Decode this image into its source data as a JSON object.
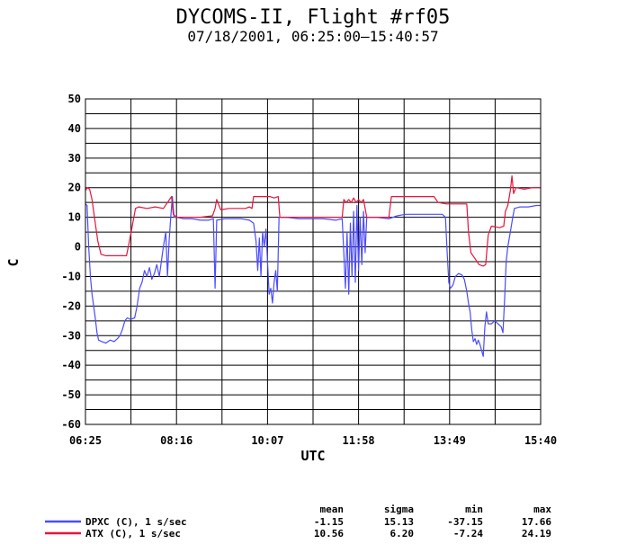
{
  "chart_data": {
    "type": "line",
    "title": "DYCOMS-II, Flight #rf05",
    "subtitle": "07/18/2001, 06:25:00–15:40:57",
    "xlabel": "UTC",
    "ylabel": "C",
    "xlim": [
      "06:25",
      "15:40"
    ],
    "ylim": [
      -60,
      50
    ],
    "x_ticks": [
      "06:25",
      "08:16",
      "10:07",
      "11:58",
      "13:49",
      "15:40"
    ],
    "y_ticks": [
      50,
      40,
      30,
      20,
      10,
      0,
      -10,
      -20,
      -30,
      -40,
      -50,
      -60
    ],
    "grid": true,
    "stats_headers": [
      "mean",
      "sigma",
      "min",
      "max"
    ],
    "series": [
      {
        "name": "DPXC (C), 1 s/sec",
        "color": "#4b4bff",
        "stats": [
          "-1.15",
          "15.13",
          "-37.15",
          "17.66"
        ],
        "points": [
          [
            "06:25",
            14.5
          ],
          [
            "06:27",
            14.0
          ],
          [
            "06:29",
            0.0
          ],
          [
            "06:31",
            -10.0
          ],
          [
            "06:33",
            -16.0
          ],
          [
            "06:35",
            -20.0
          ],
          [
            "06:37",
            -24.0
          ],
          [
            "06:39",
            -29.0
          ],
          [
            "06:41",
            -31.5
          ],
          [
            "06:45",
            -32.0
          ],
          [
            "06:50",
            -32.5
          ],
          [
            "06:55",
            -31.5
          ],
          [
            "07:00",
            -32.0
          ],
          [
            "07:04",
            -31.0
          ],
          [
            "07:07",
            -30.0
          ],
          [
            "07:10",
            -28.0
          ],
          [
            "07:13",
            -25.0
          ],
          [
            "07:16",
            -24.0
          ],
          [
            "07:20",
            -24.5
          ],
          [
            "07:25",
            -24.0
          ],
          [
            "07:28",
            -20.0
          ],
          [
            "07:31",
            -14.0
          ],
          [
            "07:34",
            -12.0
          ],
          [
            "07:37",
            -8.0
          ],
          [
            "07:40",
            -10.0
          ],
          [
            "07:43",
            -7.0
          ],
          [
            "07:46",
            -11.0
          ],
          [
            "07:49",
            -9.0
          ],
          [
            "07:52",
            -6.0
          ],
          [
            "07:55",
            -10.0
          ],
          [
            "07:58",
            -4.0
          ],
          [
            "08:00",
            0.0
          ],
          [
            "08:03",
            5.0
          ],
          [
            "08:05",
            -10.0
          ],
          [
            "08:07",
            2.0
          ],
          [
            "08:09",
            10.0
          ],
          [
            "08:11",
            17.0
          ],
          [
            "08:13",
            10.0
          ],
          [
            "08:16",
            10.0
          ],
          [
            "08:25",
            9.5
          ],
          [
            "08:35",
            9.5
          ],
          [
            "08:45",
            9.0
          ],
          [
            "08:55",
            9.0
          ],
          [
            "09:01",
            9.5
          ],
          [
            "09:03",
            -14.0
          ],
          [
            "09:05",
            9.0
          ],
          [
            "09:15",
            9.5
          ],
          [
            "09:25",
            9.5
          ],
          [
            "09:35",
            9.5
          ],
          [
            "09:45",
            9.0
          ],
          [
            "09:50",
            8.0
          ],
          [
            "09:53",
            2.0
          ],
          [
            "09:55",
            -8.0
          ],
          [
            "09:57",
            3.0
          ],
          [
            "09:59",
            -10.0
          ],
          [
            "10:01",
            5.0
          ],
          [
            "10:03",
            0.0
          ],
          [
            "10:05",
            6.0
          ],
          [
            "10:07",
            -5.0
          ],
          [
            "10:09",
            -16.0
          ],
          [
            "10:11",
            -14.0
          ],
          [
            "10:13",
            -19.0
          ],
          [
            "10:15",
            -12.0
          ],
          [
            "10:17",
            -8.0
          ],
          [
            "10:19",
            -15.0
          ],
          [
            "10:21",
            10.0
          ],
          [
            "10:30",
            10.0
          ],
          [
            "10:45",
            9.5
          ],
          [
            "11:00",
            9.5
          ],
          [
            "11:15",
            9.5
          ],
          [
            "11:30",
            9.0
          ],
          [
            "11:38",
            9.5
          ],
          [
            "11:40",
            -2.0
          ],
          [
            "11:42",
            -14.0
          ],
          [
            "11:44",
            5.0
          ],
          [
            "11:46",
            -16.0
          ],
          [
            "11:48",
            8.0
          ],
          [
            "11:50",
            -10.0
          ],
          [
            "11:52",
            12.0
          ],
          [
            "11:54",
            -12.0
          ],
          [
            "11:56",
            14.0
          ],
          [
            "11:58",
            -8.0
          ],
          [
            "12:00",
            10.0
          ],
          [
            "12:02",
            -6.0
          ],
          [
            "12:04",
            12.0
          ],
          [
            "12:06",
            -2.0
          ],
          [
            "12:08",
            10.0
          ],
          [
            "12:20",
            10.0
          ],
          [
            "12:35",
            9.5
          ],
          [
            "12:45",
            10.5
          ],
          [
            "12:55",
            11.0
          ],
          [
            "13:05",
            11.0
          ],
          [
            "13:15",
            11.0
          ],
          [
            "13:30",
            11.0
          ],
          [
            "13:40",
            11.0
          ],
          [
            "13:44",
            10.0
          ],
          [
            "13:46",
            -2.0
          ],
          [
            "13:48",
            -12.0
          ],
          [
            "13:50",
            -14.0
          ],
          [
            "13:53",
            -13.0
          ],
          [
            "13:56",
            -10.0
          ],
          [
            "14:00",
            -9.0
          ],
          [
            "14:04",
            -9.5
          ],
          [
            "14:07",
            -11.0
          ],
          [
            "14:10",
            -15.0
          ],
          [
            "14:12",
            -19.0
          ],
          [
            "14:14",
            -22.0
          ],
          [
            "14:16",
            -28.0
          ],
          [
            "14:18",
            -32.0
          ],
          [
            "14:20",
            -31.0
          ],
          [
            "14:22",
            -33.0
          ],
          [
            "14:24",
            -31.5
          ],
          [
            "14:26",
            -33.0
          ],
          [
            "14:28",
            -35.0
          ],
          [
            "14:30",
            -37.0
          ],
          [
            "14:32",
            -27.0
          ],
          [
            "14:34",
            -22.0
          ],
          [
            "14:36",
            -26.0
          ],
          [
            "14:40",
            -26.0
          ],
          [
            "14:44",
            -25.0
          ],
          [
            "14:48",
            -26.0
          ],
          [
            "14:52",
            -27.0
          ],
          [
            "14:54",
            -29.0
          ],
          [
            "14:56",
            -18.0
          ],
          [
            "14:58",
            -5.0
          ],
          [
            "15:00",
            0.0
          ],
          [
            "15:03",
            5.0
          ],
          [
            "15:06",
            10.0
          ],
          [
            "15:08",
            13.0
          ],
          [
            "15:15",
            13.5
          ],
          [
            "15:25",
            13.5
          ],
          [
            "15:35",
            14.0
          ],
          [
            "15:40",
            14.0
          ]
        ]
      },
      {
        "name": "ATX (C), 1 s/sec",
        "color": "#e8143c",
        "stats": [
          "10.56",
          "6.20",
          "-7.24",
          "24.19"
        ],
        "points": [
          [
            "06:25",
            19.0
          ],
          [
            "06:27",
            20.0
          ],
          [
            "06:30",
            19.5
          ],
          [
            "06:33",
            16.0
          ],
          [
            "06:36",
            10.0
          ],
          [
            "06:40",
            2.0
          ],
          [
            "06:44",
            -2.5
          ],
          [
            "06:50",
            -3.0
          ],
          [
            "07:00",
            -3.0
          ],
          [
            "07:10",
            -3.0
          ],
          [
            "07:15",
            -3.0
          ],
          [
            "07:18",
            1.0
          ],
          [
            "07:22",
            7.0
          ],
          [
            "07:26",
            13.0
          ],
          [
            "07:30",
            13.5
          ],
          [
            "07:40",
            13.0
          ],
          [
            "07:50",
            13.5
          ],
          [
            "08:00",
            13.0
          ],
          [
            "08:05",
            15.0
          ],
          [
            "08:10",
            17.0
          ],
          [
            "08:12",
            11.0
          ],
          [
            "08:16",
            10.0
          ],
          [
            "08:30",
            10.0
          ],
          [
            "08:45",
            10.0
          ],
          [
            "09:00",
            10.5
          ],
          [
            "09:03",
            13.0
          ],
          [
            "09:05",
            16.0
          ],
          [
            "09:10",
            12.5
          ],
          [
            "09:20",
            13.0
          ],
          [
            "09:30",
            13.0
          ],
          [
            "09:40",
            13.0
          ],
          [
            "09:45",
            13.5
          ],
          [
            "09:48",
            13.0
          ],
          [
            "09:50",
            17.0
          ],
          [
            "10:00",
            17.0
          ],
          [
            "10:10",
            17.0
          ],
          [
            "10:15",
            16.5
          ],
          [
            "10:20",
            17.0
          ],
          [
            "10:22",
            10.0
          ],
          [
            "10:35",
            10.0
          ],
          [
            "10:50",
            10.0
          ],
          [
            "11:05",
            10.0
          ],
          [
            "11:20",
            10.0
          ],
          [
            "11:35",
            10.0
          ],
          [
            "11:38",
            10.0
          ],
          [
            "11:40",
            16.0
          ],
          [
            "11:43",
            15.0
          ],
          [
            "11:46",
            16.0
          ],
          [
            "11:49",
            15.0
          ],
          [
            "11:52",
            16.5
          ],
          [
            "11:55",
            15.0
          ],
          [
            "11:58",
            16.0
          ],
          [
            "12:01",
            15.0
          ],
          [
            "12:04",
            16.0
          ],
          [
            "12:08",
            10.0
          ],
          [
            "12:20",
            10.0
          ],
          [
            "12:35",
            10.0
          ],
          [
            "12:38",
            17.0
          ],
          [
            "12:50",
            17.0
          ],
          [
            "13:05",
            17.0
          ],
          [
            "13:20",
            17.0
          ],
          [
            "13:30",
            17.0
          ],
          [
            "13:35",
            15.0
          ],
          [
            "13:45",
            14.5
          ],
          [
            "14:00",
            14.5
          ],
          [
            "14:10",
            14.5
          ],
          [
            "14:12",
            5.0
          ],
          [
            "14:15",
            -2.0
          ],
          [
            "14:20",
            -4.0
          ],
          [
            "14:25",
            -6.0
          ],
          [
            "14:30",
            -6.5
          ],
          [
            "14:33",
            -6.0
          ],
          [
            "14:36",
            4.0
          ],
          [
            "14:40",
            7.0
          ],
          [
            "14:50",
            6.5
          ],
          [
            "14:55",
            7.0
          ],
          [
            "14:57",
            12.0
          ],
          [
            "15:00",
            14.0
          ],
          [
            "15:03",
            19.0
          ],
          [
            "15:05",
            24.0
          ],
          [
            "15:07",
            18.0
          ],
          [
            "15:10",
            20.0
          ],
          [
            "15:20",
            19.5
          ],
          [
            "15:30",
            20.0
          ],
          [
            "15:40",
            20.0
          ]
        ]
      }
    ]
  }
}
